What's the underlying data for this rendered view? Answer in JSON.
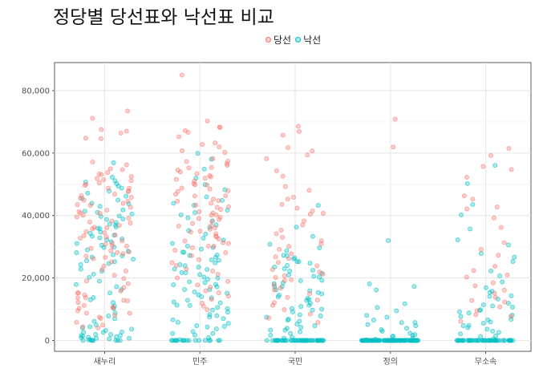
{
  "title": "정당별 당선표와 낙선표 비교",
  "legend": [
    {
      "name": "당선",
      "color": "#F8766D"
    },
    {
      "name": "낙선",
      "color": "#00BFC4"
    }
  ],
  "chart_data": {
    "type": "scatter",
    "title": "정당별 당선표와 낙선표 비교",
    "xlabel": "",
    "ylabel": "",
    "categories": [
      "새누리",
      "민주",
      "국민",
      "정의",
      "무소속"
    ],
    "ylim": [
      -3500,
      89000
    ],
    "yticks": [
      0,
      20000,
      40000,
      60000,
      80000
    ],
    "ytick_labels": [
      "0",
      "20,000",
      "40,000",
      "60,000",
      "80,000"
    ],
    "grid": true,
    "legend_position": "top",
    "series": [
      {
        "name": "당선",
        "color": "#F8766D",
        "points": [
          {
            "x": "새누리",
            "y": [
              73500,
              71000,
              67500,
              67000,
              66500,
              65000,
              64500,
              57000,
              56500,
              55000,
              54500,
              54000,
              53500,
              53000,
              52500,
              52000,
              51500,
              51000,
              50500,
              50000,
              49500,
              49000,
              48500,
              48000,
              47500,
              47000,
              46500,
              46000,
              45500,
              45000,
              44500,
              44000,
              43500,
              43000,
              42500,
              42000,
              41500,
              41000,
              40500,
              40000,
              39500,
              39000,
              38500,
              38000,
              37500,
              37000,
              36500,
              36000,
              35500,
              35000,
              34500,
              34000,
              33500,
              33000,
              32500,
              32000,
              31500,
              31000,
              30500,
              30000,
              29500,
              29000,
              28500,
              28000,
              27500,
              27000,
              26500,
              26000,
              25000,
              24000,
              23000,
              22000,
              21000,
              20000,
              19000,
              18000,
              17000,
              16000,
              15500,
              15000,
              14500,
              14000,
              13500,
              13000,
              12500,
              12000,
              11500,
              11000,
              10500,
              10000,
              9500,
              9000,
              8500,
              8000,
              7500,
              7000,
              6000,
              5000,
              4500,
              4000
            ]
          },
          {
            "x": "민주",
            "y": [
              85000,
              70500,
              68500,
              68000,
              67000,
              66500,
              65500,
              63000,
              62500,
              62000,
              61000,
              60000,
              58500,
              57500,
              57000,
              56500,
              56000,
              55500,
              55000,
              54500,
              54000,
              53500,
              53000,
              52500,
              52000,
              51500,
              51000,
              50500,
              50000,
              49500,
              49000,
              48500,
              48000,
              47500,
              47000,
              46500,
              46000,
              45500,
              45000,
              44500,
              44000,
              43500,
              43000,
              42500,
              42000,
              41500,
              41000,
              40500,
              40000,
              39500,
              39000,
              38500,
              38000,
              37500,
              37000,
              36500,
              36000,
              35500,
              35000,
              34500,
              34000,
              33500,
              33000,
              32500,
              32000,
              31500,
              31000,
              30500,
              30000,
              29500,
              29000,
              28000,
              27000,
              26000,
              25000,
              24000,
              23000,
              22000,
              21000,
              20000,
              19000,
              18000,
              17000,
              16000,
              15000,
              14000,
              13000,
              12000,
              11000,
              10000
            ]
          },
          {
            "x": "국민",
            "y": [
              68500,
              67000,
              65500,
              61500,
              60500,
              59500,
              58500,
              54500,
              52500,
              49500,
              48000,
              46000,
              45000,
              43500,
              42500,
              41500,
              41000,
              40500,
              38500,
              37000,
              35500,
              34000,
              33000,
              32000,
              31000,
              30000,
              29000,
              28000,
              27000,
              26000,
              25000,
              24000,
              23000,
              22000,
              21000,
              20500,
              20000,
              19500,
              19000,
              18000,
              17000,
              16000,
              15000,
              14000,
              13000,
              12000,
              11000,
              10000,
              8500,
              7000,
              6000
            ]
          },
          {
            "x": "정의",
            "y": [
              71000,
              62000
            ]
          },
          {
            "x": "무소속",
            "y": [
              61500,
              59500,
              55500,
              55000,
              52500,
              46500,
              45000,
              43000,
              42000,
              39000,
              36500,
              31000,
              29000,
              27000,
              24000,
              22500,
              21000,
              20000,
              18500,
              17500,
              16000,
              15000,
              14000,
              13000,
              12000,
              10500,
              9500,
              8500,
              7500,
              6000
            ]
          }
        ]
      },
      {
        "name": "낙선",
        "color": "#00BFC4",
        "points": [
          {
            "x": "새누리",
            "y": [
              57000,
              52000,
              51000,
              50500,
              50000,
              49500,
              49000,
              48000,
              47000,
              46000,
              45500,
              45000,
              44000,
              43500,
              43000,
              42000,
              41500,
              41000,
              40500,
              40000,
              39500,
              39000,
              38500,
              38000,
              37500,
              37000,
              36500,
              36000,
              35500,
              35000,
              34500,
              34000,
              33500,
              33000,
              32500,
              32000,
              31500,
              31000,
              30500,
              30000,
              29500,
              29000,
              28500,
              28000,
              27500,
              27000,
              26500,
              26000,
              25500,
              25000,
              24500,
              24000,
              23000,
              22000,
              21000,
              20000,
              19000,
              18000,
              17000,
              16000,
              15000,
              14000,
              13000,
              12000,
              11000,
              10000,
              9000,
              8000,
              7000,
              6000,
              5000,
              4500,
              4000,
              3500,
              3000,
              2800,
              2600,
              2400,
              2200,
              2000,
              1800,
              1600,
              1400,
              1200,
              1000,
              800,
              600,
              400,
              300,
              200,
              100,
              0,
              0,
              0,
              0,
              0,
              0,
              0
            ]
          },
          {
            "x": "민주",
            "y": [
              60000,
              58000,
              55000,
              52000,
              50000,
              48000,
              46000,
              45000,
              44000,
              43000,
              42000,
              41000,
              40000,
              39000,
              38000,
              37000,
              36000,
              35000,
              34000,
              33000,
              32000,
              31000,
              30000,
              29500,
              29000,
              28500,
              28000,
              27500,
              27000,
              26500,
              26000,
              25500,
              25000,
              24500,
              24000,
              23500,
              23000,
              22500,
              22000,
              21500,
              21000,
              20500,
              20000,
              19500,
              19000,
              18500,
              18000,
              17500,
              17000,
              16500,
              16000,
              15500,
              15000,
              14500,
              14000,
              13500,
              13000,
              12500,
              12000,
              11500,
              11000,
              10500,
              10000,
              9500,
              9000,
              8500,
              8000,
              7500,
              7000,
              6500,
              6000,
              5500,
              5000,
              4500,
              4000,
              3500,
              3000,
              2500,
              2000,
              1500,
              1000,
              500,
              0,
              0,
              0,
              0,
              0,
              0,
              0,
              0,
              0,
              0,
              0,
              0,
              0,
              0,
              0,
              0,
              0,
              0
            ]
          },
          {
            "x": "국민",
            "y": [
              43500,
              36000,
              33500,
              31000,
              29500,
              28500,
              27500,
              27000,
              26500,
              26000,
              25500,
              25000,
              24500,
              24000,
              23500,
              23000,
              22500,
              22000,
              21500,
              21000,
              20500,
              20000,
              19500,
              19000,
              18500,
              18000,
              17500,
              17000,
              16500,
              16000,
              15500,
              15000,
              14500,
              14000,
              13500,
              13000,
              12500,
              12000,
              11500,
              11000,
              10500,
              10000,
              9500,
              9000,
              8500,
              8000,
              7500,
              7000,
              6500,
              6000,
              5500,
              5000,
              4500,
              4000,
              3500,
              3000,
              2500,
              2000,
              1500,
              1000,
              500,
              0,
              0,
              0,
              0,
              0,
              0,
              0,
              0,
              0,
              0,
              0,
              0,
              0,
              0,
              0,
              0,
              0,
              0,
              0,
              0,
              0,
              0,
              0,
              0,
              0,
              0,
              0,
              0,
              0,
              0,
              0,
              0,
              0,
              0,
              0,
              0,
              0,
              0,
              0,
              0,
              0,
              0,
              0,
              0,
              0,
              0,
              0,
              0,
              0,
              0,
              0,
              0
            ]
          },
          {
            "x": "정의",
            "y": [
              32000,
              18000,
              17000,
              16000,
              12000,
              10500,
              9500,
              8000,
              7500,
              6500,
              6000,
              5500,
              5000,
              4500,
              4000,
              3500,
              3000,
              2500,
              2000,
              1500,
              1200,
              1000,
              800,
              600,
              400,
              200,
              0,
              0,
              0,
              0,
              0,
              0,
              0,
              0,
              0,
              0,
              0,
              0,
              0,
              0,
              0,
              0,
              0,
              0,
              0,
              0,
              0,
              0,
              0,
              0,
              0,
              0,
              0,
              0,
              0,
              0,
              0,
              0,
              0,
              0,
              0,
              0,
              0,
              0,
              0,
              0,
              0,
              0,
              0,
              0,
              0,
              0,
              0,
              0,
              0,
              0,
              0,
              0,
              0,
              0,
              0,
              0,
              0,
              0,
              0,
              0,
              0,
              0,
              0,
              0,
              0,
              0,
              0,
              0,
              0,
              0,
              0,
              0,
              0,
              0,
              0,
              0,
              0,
              0,
              0,
              0,
              0,
              0,
              0,
              0,
              0,
              0,
              0,
              0,
              0,
              0,
              0,
              0,
              0,
              0,
              0,
              0,
              0,
              0,
              0,
              0,
              0,
              0,
              0,
              0
            ]
          },
          {
            "x": "무소속",
            "y": [
              56000,
              50500,
              43500,
              40000,
              35500,
              32500,
              30500,
              28000,
              26500,
              25000,
              22000,
              20500,
              19000,
              17000,
              16000,
              15500,
              14500,
              14000,
              13000,
              12000,
              11500,
              11000,
              10500,
              10000,
              9500,
              9000,
              8500,
              8000,
              7500,
              7000,
              6500,
              6000,
              5500,
              5000,
              4500,
              4000,
              3500,
              3000,
              2500,
              2000,
              1500,
              1000,
              500,
              0,
              0,
              0,
              0,
              0,
              0,
              0,
              0,
              0,
              0,
              0,
              0,
              0,
              0,
              0,
              0,
              0,
              0,
              0,
              0,
              0,
              0,
              0,
              0,
              0,
              0,
              0,
              0,
              0,
              0,
              0,
              0,
              0,
              0,
              0,
              0,
              0,
              0,
              0,
              0,
              0,
              0,
              0,
              0,
              0,
              0,
              0,
              0,
              0,
              0,
              0,
              0,
              0,
              0,
              0
            ]
          }
        ]
      }
    ]
  }
}
